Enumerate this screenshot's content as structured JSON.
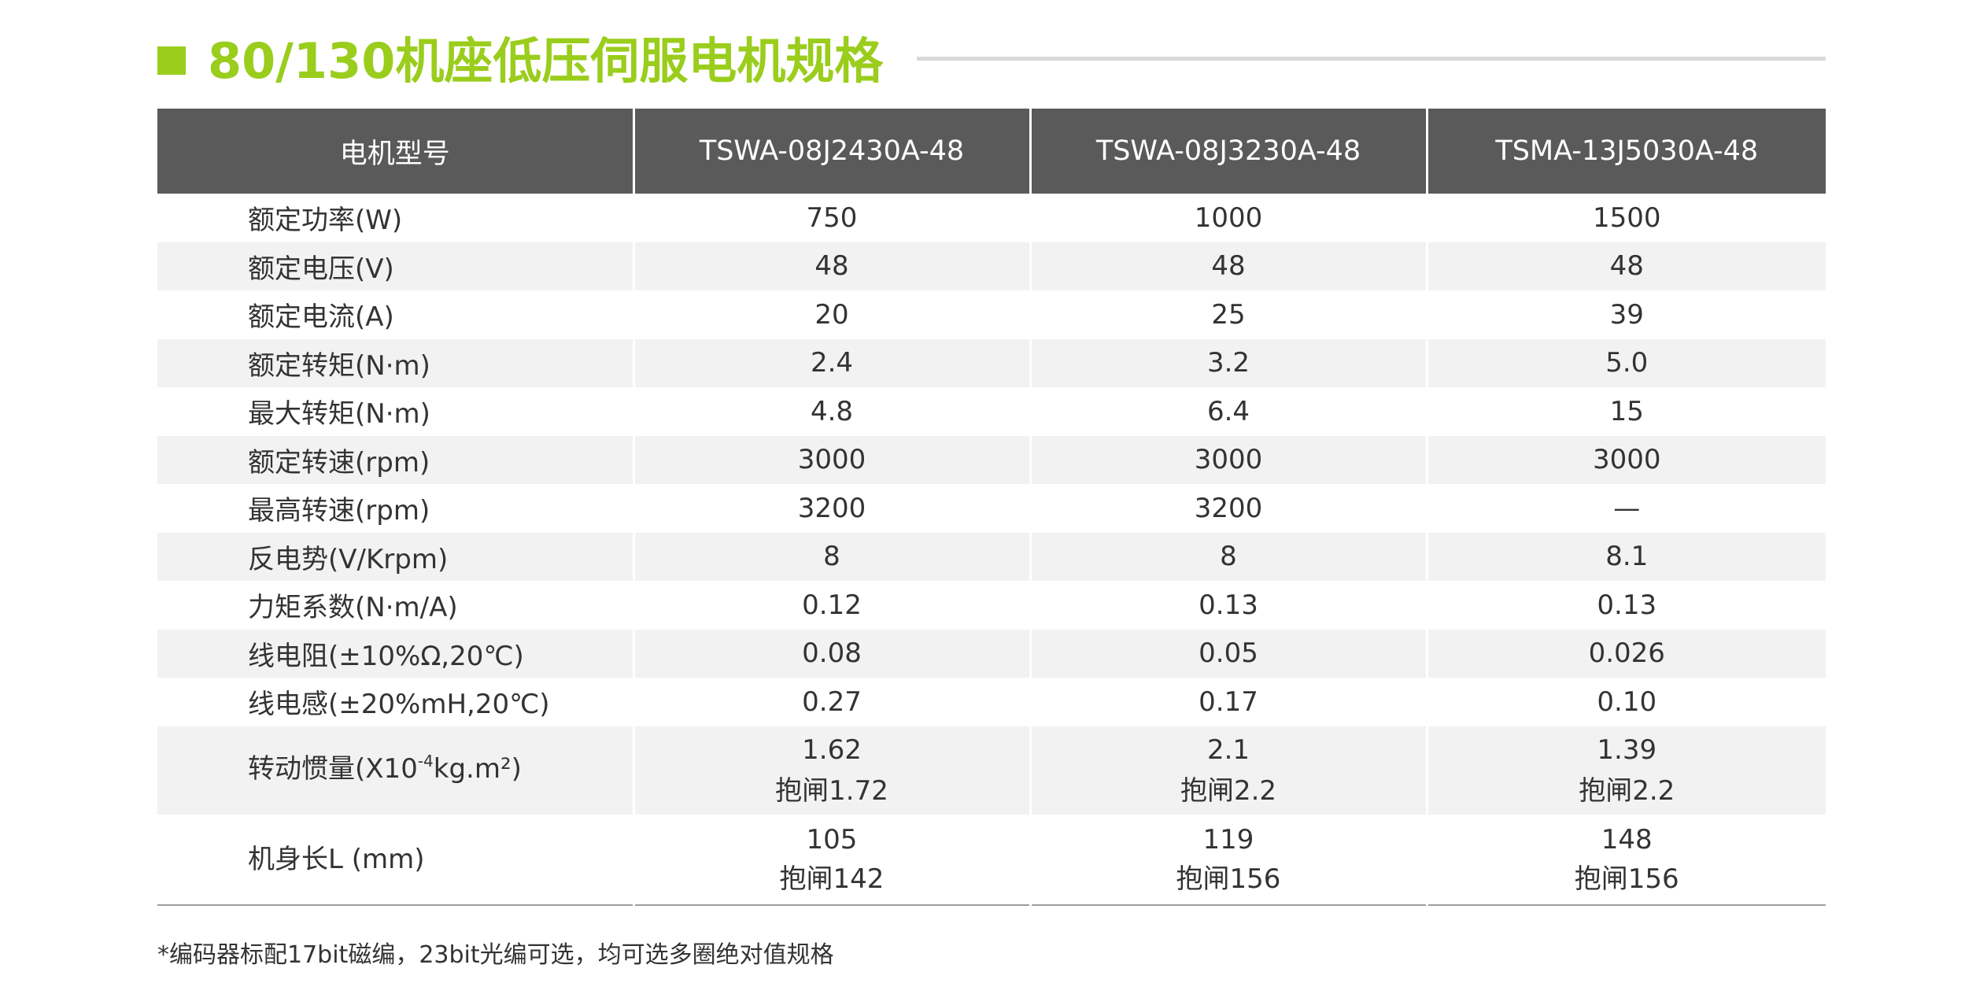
{
  "page": {
    "title": "80/130机座低压伺服电机规格",
    "footnote": "*编码器标配17bit磁编，23bit光编可选，均可选多圈绝对值规格"
  },
  "colors": {
    "accent": "#9acd1c",
    "header_bg": "#5b5a5a",
    "row_shade": "#f2f2f2",
    "title_rule": "#d9d9d9"
  },
  "icons": {
    "title_marker": "green-square-icon"
  },
  "table": {
    "header": [
      "电机型号",
      "TSWA-08J2430A-48",
      "TSWA-08J3230A-48",
      "TSMA-13J5030A-48"
    ],
    "rows": [
      {
        "label": "额定功率(W)",
        "values": [
          "750",
          "1000",
          "1500"
        ]
      },
      {
        "label": "额定电压(V)",
        "values": [
          "48",
          "48",
          "48"
        ]
      },
      {
        "label": "额定电流(A)",
        "values": [
          "20",
          "25",
          "39"
        ]
      },
      {
        "label": "额定转矩(N·m)",
        "values": [
          "2.4",
          "3.2",
          "5.0"
        ]
      },
      {
        "label": "最大转矩(N·m)",
        "values": [
          "4.8",
          "6.4",
          "15"
        ]
      },
      {
        "label": "额定转速(rpm)",
        "values": [
          "3000",
          "3000",
          "3000"
        ]
      },
      {
        "label": "最高转速(rpm)",
        "values": [
          "3200",
          "3200",
          "—"
        ]
      },
      {
        "label": "反电势(V/Krpm)",
        "values": [
          "8",
          "8",
          "8.1"
        ]
      },
      {
        "label": "力矩系数(N·m/A)",
        "values": [
          "0.12",
          "0.13",
          "0.13"
        ]
      },
      {
        "label": "线电阻(±10%Ω,20℃)",
        "values": [
          "0.08",
          "0.05",
          "0.026"
        ]
      },
      {
        "label": "线电感(±20%mH,20℃)",
        "values": [
          "0.27",
          "0.17",
          "0.10"
        ]
      },
      {
        "label_prefix": "转动惯量(X10",
        "label_sup": "-4",
        "label_suffix": "kg.m²)",
        "values": [
          [
            "1.62",
            "抱闸1.72"
          ],
          [
            "2.1",
            "抱闸2.2"
          ],
          [
            "1.39",
            "抱闸2.2"
          ]
        ]
      },
      {
        "label": "机身长L (mm)",
        "values": [
          [
            "105",
            "抱闸142"
          ],
          [
            "119",
            "抱闸156"
          ],
          [
            "148",
            "抱闸156"
          ]
        ]
      }
    ]
  }
}
